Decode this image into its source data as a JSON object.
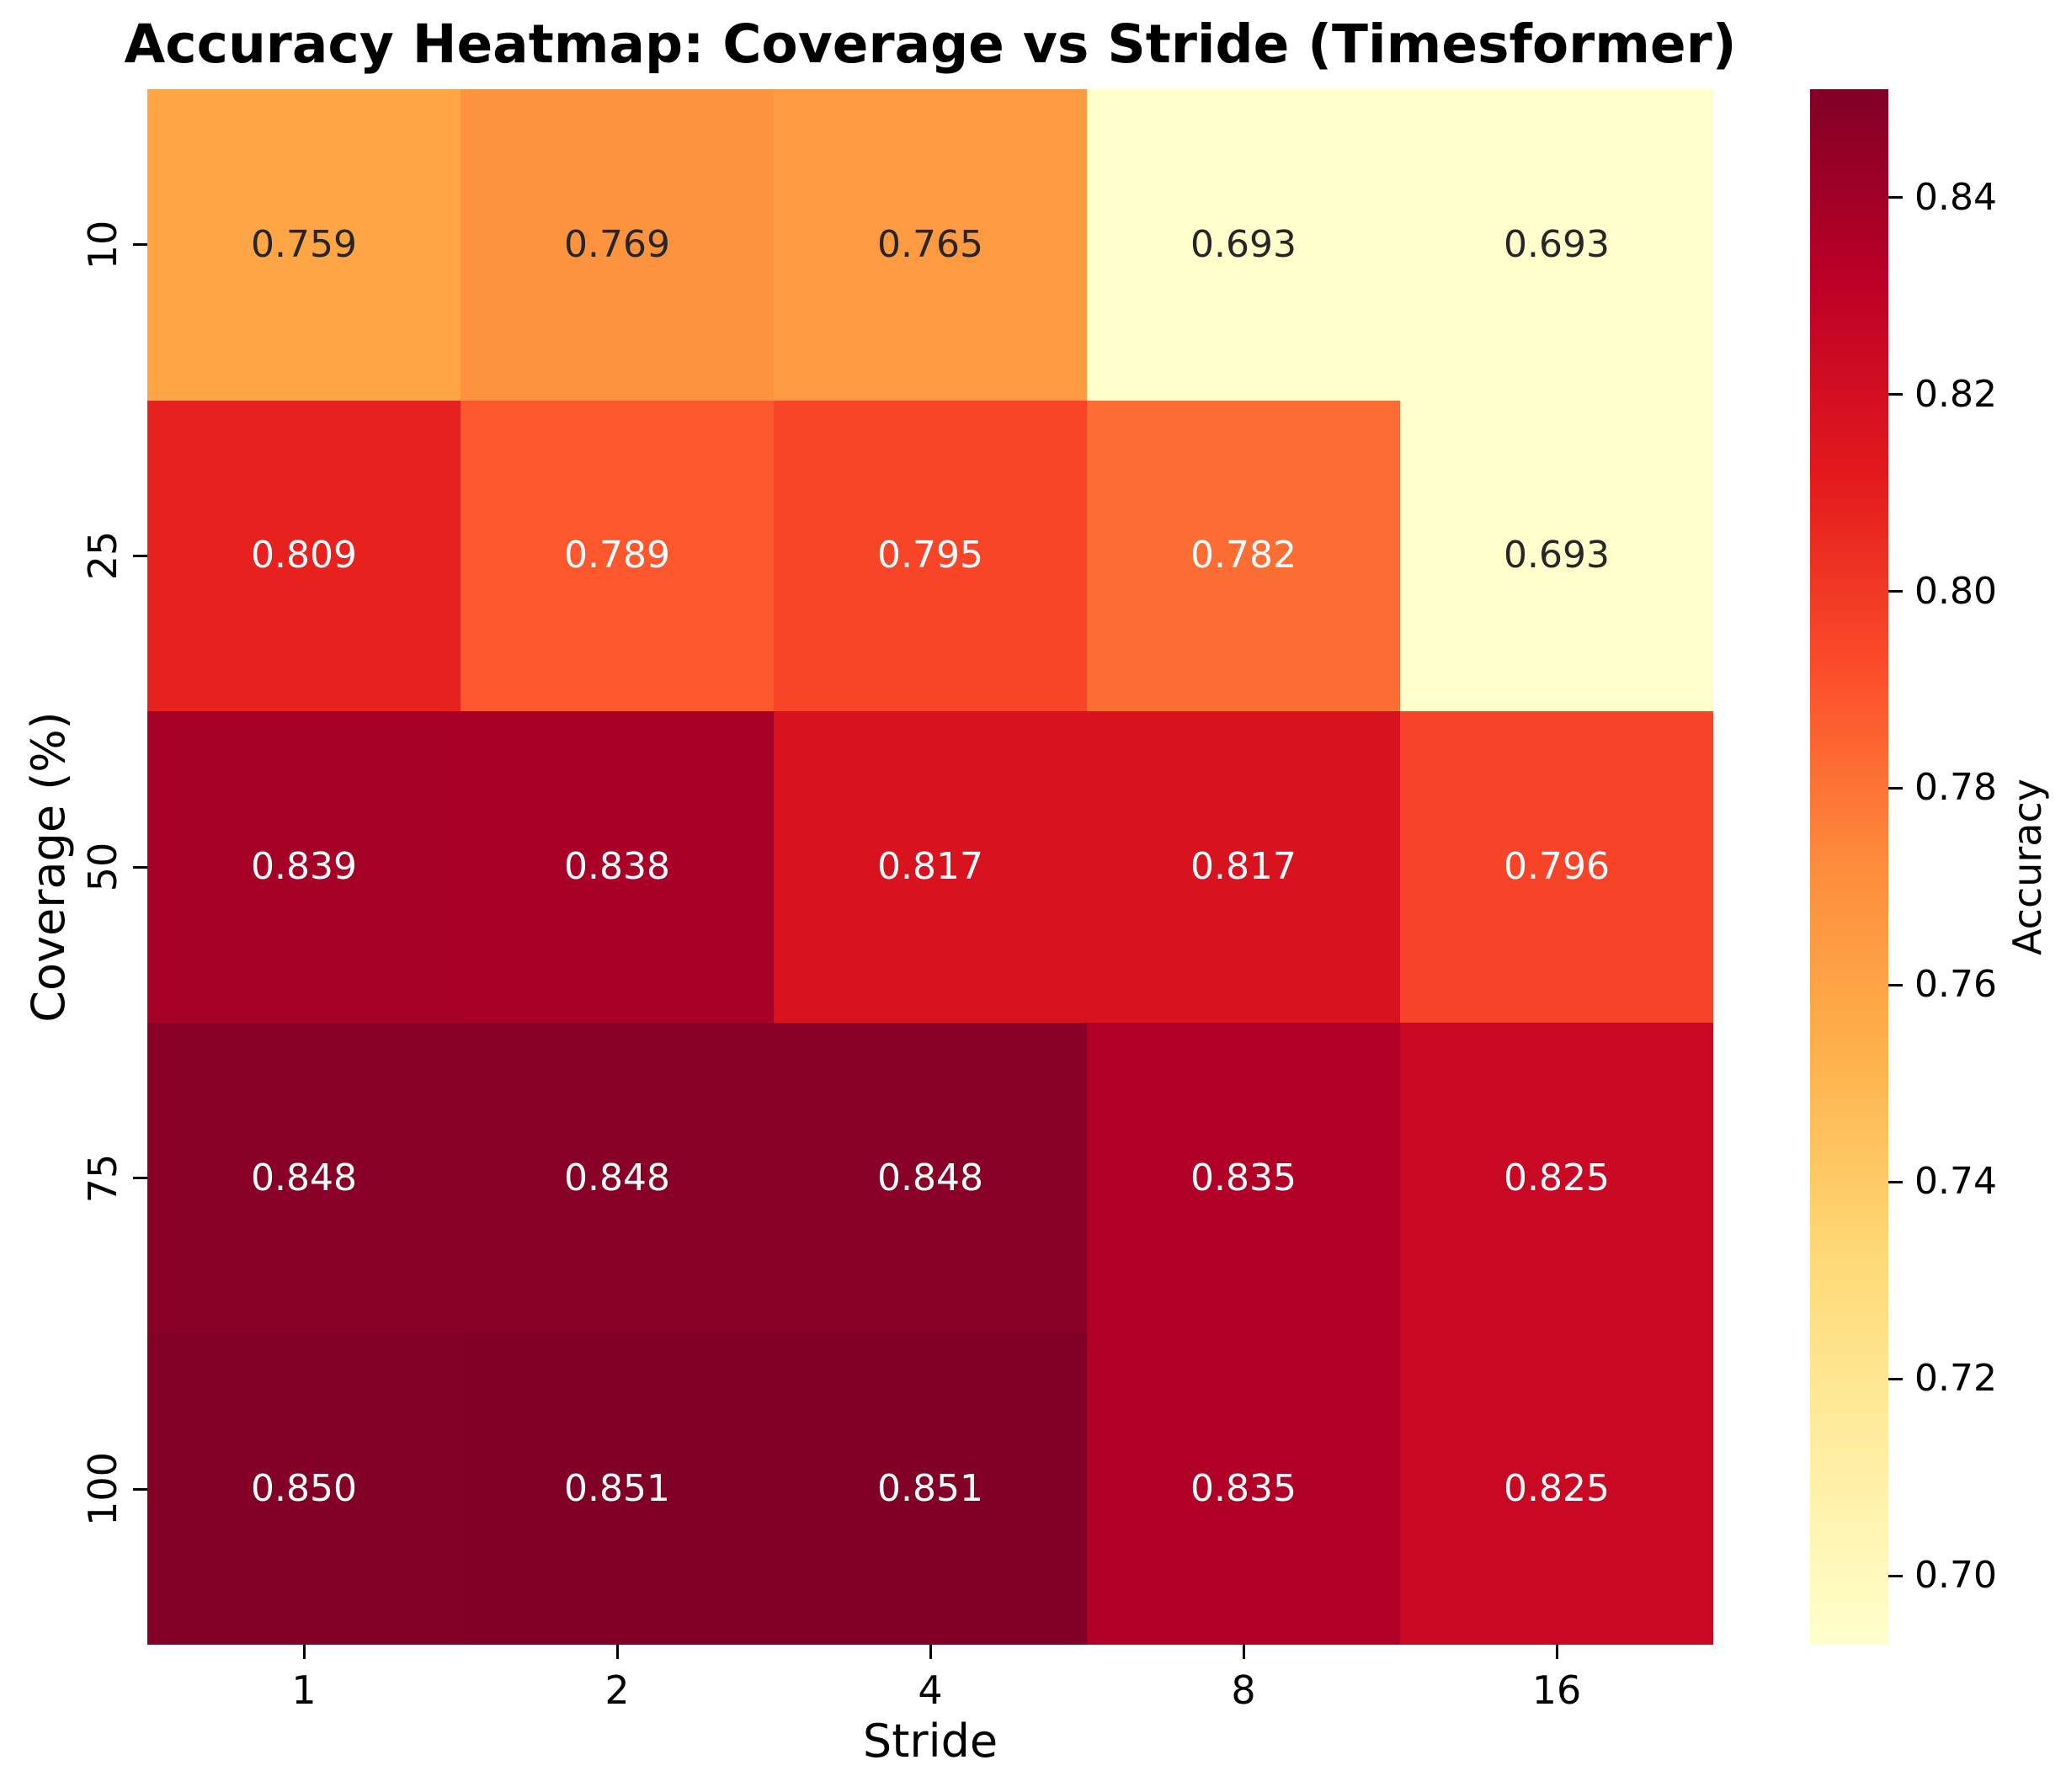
{
  "chart_data": {
    "type": "heatmap",
    "title": "Accuracy Heatmap: Coverage vs Stride (Timesformer)",
    "xlabel": "Stride",
    "ylabel": "Coverage (%)",
    "x_categories": [
      "1",
      "2",
      "4",
      "8",
      "16"
    ],
    "y_categories": [
      "10",
      "25",
      "50",
      "75",
      "100"
    ],
    "values": [
      [
        0.759,
        0.769,
        0.765,
        0.693,
        0.693
      ],
      [
        0.809,
        0.789,
        0.795,
        0.782,
        0.693
      ],
      [
        0.839,
        0.838,
        0.817,
        0.817,
        0.796
      ],
      [
        0.848,
        0.848,
        0.848,
        0.835,
        0.825
      ],
      [
        0.85,
        0.851,
        0.851,
        0.835,
        0.825
      ]
    ],
    "labels": [
      [
        "0.759",
        "0.769",
        "0.765",
        "0.693",
        "0.693"
      ],
      [
        "0.809",
        "0.789",
        "0.795",
        "0.782",
        "0.693"
      ],
      [
        "0.839",
        "0.838",
        "0.817",
        "0.817",
        "0.796"
      ],
      [
        "0.848",
        "0.848",
        "0.848",
        "0.835",
        "0.825"
      ],
      [
        "0.850",
        "0.851",
        "0.851",
        "0.835",
        "0.825"
      ]
    ],
    "cell_colors": [
      [
        "#FEA546",
        "#FD933E",
        "#FD9A42",
        "#FFFFCC",
        "#FFFFCC"
      ],
      [
        "#E6211E",
        "#FC572D",
        "#F84528",
        "#FC6D33",
        "#FFFFCC"
      ],
      [
        "#A50026",
        "#A80026",
        "#D8131F",
        "#D8131F",
        "#F74327"
      ],
      [
        "#890026",
        "#890026",
        "#890026",
        "#B10026",
        "#C90823"
      ],
      [
        "#830026",
        "#800026",
        "#800026",
        "#B10026",
        "#C90823"
      ]
    ],
    "text_colors": [
      [
        "#262626",
        "#262626",
        "#262626",
        "#262626",
        "#262626"
      ],
      [
        "#FFFFFF",
        "#FFFFFF",
        "#FFFFFF",
        "#FFFFFF",
        "#262626"
      ],
      [
        "#FFFFFF",
        "#FFFFFF",
        "#FFFFFF",
        "#FFFFFF",
        "#FFFFFF"
      ],
      [
        "#FFFFFF",
        "#FFFFFF",
        "#FFFFFF",
        "#FFFFFF",
        "#FFFFFF"
      ],
      [
        "#FFFFFF",
        "#FFFFFF",
        "#FFFFFF",
        "#FFFFFF",
        "#FFFFFF"
      ]
    ],
    "grid": false,
    "annotation_colors": {
      "dark": "#262626",
      "light": "#FFFFFF"
    },
    "axis_color": "#000000",
    "colormap": {
      "name": "YlOrRd",
      "vmin": 0.693,
      "vmax": 0.851,
      "gradient_top_to_bottom": [
        "#800026",
        "#BD0026",
        "#E31A1C",
        "#FC4E2A",
        "#FD8D3C",
        "#FEB24C",
        "#FED976",
        "#FFEDA0",
        "#FFFFCC"
      ]
    },
    "colorbar": {
      "label": "Accuracy",
      "tick_labels": [
        "0.84",
        "0.82",
        "0.80",
        "0.78",
        "0.76",
        "0.74",
        "0.72",
        "0.70"
      ],
      "tick_values": [
        0.84,
        0.82,
        0.8,
        0.78,
        0.76,
        0.74,
        0.72,
        0.7
      ]
    }
  }
}
